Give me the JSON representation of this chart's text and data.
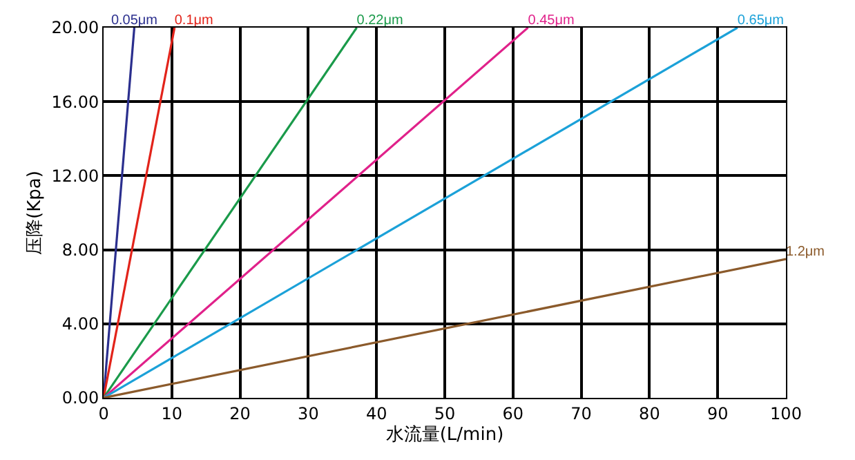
{
  "chart_data": {
    "type": "line",
    "xlabel": "水流量(L/min)",
    "ylabel": "压降(Kpa)",
    "xlim": [
      0,
      100
    ],
    "xticks": [
      0,
      10,
      20,
      30,
      40,
      50,
      60,
      70,
      80,
      90,
      100
    ],
    "ylim": [
      0,
      20
    ],
    "yticks": [
      {
        "value": 0,
        "label": "0.00"
      },
      {
        "value": 4,
        "label": "4.00"
      },
      {
        "value": 8,
        "label": "8.00"
      },
      {
        "value": 12,
        "label": "12.00"
      },
      {
        "value": 16,
        "label": "16.00"
      },
      {
        "value": 20,
        "label": "20.00"
      }
    ],
    "grid": true,
    "legend": false,
    "marker": "none",
    "line_style": "solid",
    "series": [
      {
        "name": "0.05μm",
        "color": "#2b2f8e",
        "x": [
          0,
          4.5
        ],
        "values": [
          0,
          20
        ]
      },
      {
        "name": "0.1μm",
        "color": "#e2231a",
        "x": [
          0,
          10.4
        ],
        "values": [
          0,
          20
        ]
      },
      {
        "name": "0.22μm",
        "color": "#1a9a4a",
        "x": [
          0,
          37.1
        ],
        "values": [
          0,
          20
        ]
      },
      {
        "name": "0.45μm",
        "color": "#e0218a",
        "x": [
          0,
          62.2
        ],
        "values": [
          0,
          20
        ]
      },
      {
        "name": "0.65μm",
        "color": "#1ba1d8",
        "x": [
          0,
          92.9
        ],
        "values": [
          0,
          20
        ]
      },
      {
        "name": "1.2μm",
        "color": "#8b5a2b",
        "x": [
          0,
          100
        ],
        "values": [
          0,
          7.5
        ]
      }
    ]
  }
}
